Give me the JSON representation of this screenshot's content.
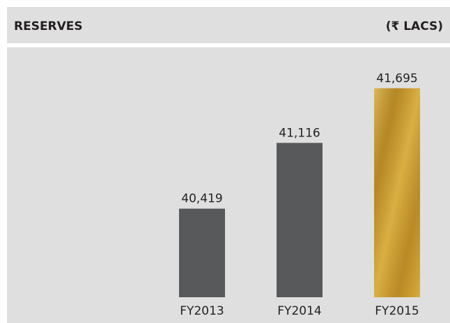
{
  "chart_data": {
    "type": "bar",
    "title": "RESERVES",
    "unit_label": "(₹ LACS)",
    "categories": [
      "FY2013",
      "FY2014",
      "FY2015"
    ],
    "values": [
      40419,
      41116,
      41695
    ],
    "value_labels": [
      "40,419",
      "41,116",
      "41,695"
    ],
    "colors": [
      "#58595b",
      "#58595b",
      "#c99a2c"
    ],
    "ylim": [
      39480,
      41900
    ]
  }
}
